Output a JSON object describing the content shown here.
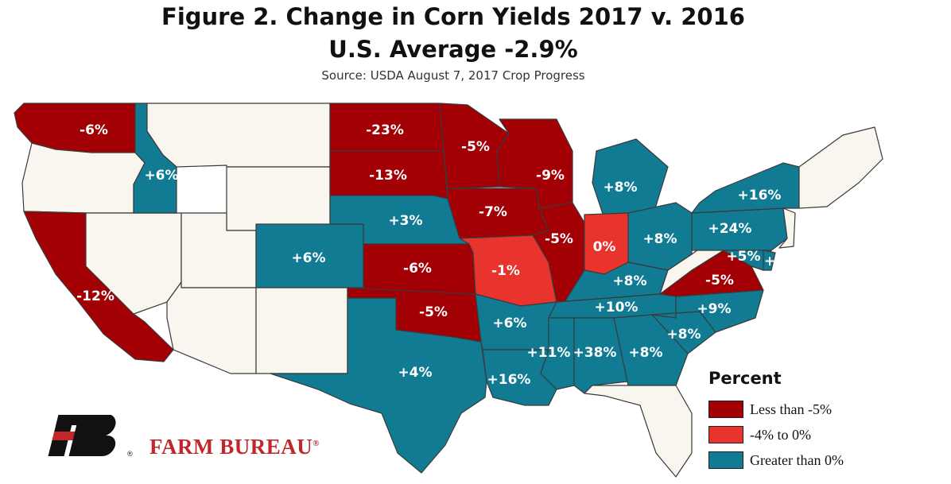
{
  "title": "Figure 2. Change in Corn Yields 2017 v. 2016",
  "subtitle": "U.S. Average -2.9%",
  "source": "Source: USDA August 7, 2017 Crop Progress",
  "colors": {
    "low": "#a30006",
    "mid": "#e8342c",
    "high": "#117b93",
    "none": "#f8f6ee",
    "border": "#3a3a3a"
  },
  "legend": {
    "title": "Percent",
    "items": [
      {
        "label": "Less than -5%",
        "color": "#a30006"
      },
      {
        "label": "-4% to 0%",
        "color": "#e8342c"
      },
      {
        "label": "Greater than 0%",
        "color": "#117b93"
      }
    ]
  },
  "states": [
    {
      "id": "WA",
      "value": "-6%",
      "cat": "low"
    },
    {
      "id": "OR",
      "value": "",
      "cat": "none"
    },
    {
      "id": "CA",
      "value": "-12%",
      "cat": "low"
    },
    {
      "id": "NV",
      "value": "",
      "cat": "none"
    },
    {
      "id": "ID",
      "value": "+6%",
      "cat": "high"
    },
    {
      "id": "MT",
      "value": "",
      "cat": "none"
    },
    {
      "id": "WY",
      "value": "",
      "cat": "none"
    },
    {
      "id": "UT",
      "value": "",
      "cat": "none"
    },
    {
      "id": "AZ",
      "value": "",
      "cat": "none"
    },
    {
      "id": "CO",
      "value": "+6%",
      "cat": "high"
    },
    {
      "id": "NM",
      "value": "",
      "cat": "none"
    },
    {
      "id": "ND",
      "value": "-23%",
      "cat": "low"
    },
    {
      "id": "SD",
      "value": "-13%",
      "cat": "low"
    },
    {
      "id": "NE",
      "value": "+3%",
      "cat": "high"
    },
    {
      "id": "KS",
      "value": "-6%",
      "cat": "low"
    },
    {
      "id": "OK",
      "value": "-5%",
      "cat": "low"
    },
    {
      "id": "TX",
      "value": "+4%",
      "cat": "high"
    },
    {
      "id": "MN",
      "value": "-5%",
      "cat": "low"
    },
    {
      "id": "IA",
      "value": "-7%",
      "cat": "low"
    },
    {
      "id": "MO",
      "value": "-1%",
      "cat": "mid"
    },
    {
      "id": "AR",
      "value": "+6%",
      "cat": "high"
    },
    {
      "id": "LA",
      "value": "+16%",
      "cat": "high"
    },
    {
      "id": "WI",
      "value": "-9%",
      "cat": "low"
    },
    {
      "id": "IL",
      "value": "-5%",
      "cat": "low"
    },
    {
      "id": "MI",
      "value": "+8%",
      "cat": "high"
    },
    {
      "id": "IN",
      "value": "0%",
      "cat": "mid"
    },
    {
      "id": "OH",
      "value": "+8%",
      "cat": "high"
    },
    {
      "id": "KY",
      "value": "+8%",
      "cat": "high"
    },
    {
      "id": "TN",
      "value": "+10%",
      "cat": "high"
    },
    {
      "id": "MS",
      "value": "+11%",
      "cat": "high"
    },
    {
      "id": "AL",
      "value": "+38%",
      "cat": "high"
    },
    {
      "id": "GA",
      "value": "+8%",
      "cat": "high"
    },
    {
      "id": "FL",
      "value": "",
      "cat": "none"
    },
    {
      "id": "SC",
      "value": "+8%",
      "cat": "high"
    },
    {
      "id": "NC",
      "value": "+9%",
      "cat": "high"
    },
    {
      "id": "VA",
      "value": "-5%",
      "cat": "low"
    },
    {
      "id": "WV",
      "value": "",
      "cat": "none"
    },
    {
      "id": "PA",
      "value": "+24%",
      "cat": "high"
    },
    {
      "id": "NY",
      "value": "+16%",
      "cat": "high"
    },
    {
      "id": "MD",
      "value": "+5%",
      "cat": "high"
    },
    {
      "id": "DE",
      "value": "+",
      "cat": "high"
    },
    {
      "id": "NJ",
      "value": "",
      "cat": "none"
    },
    {
      "id": "NE_REGION",
      "value": "",
      "cat": "none"
    }
  ],
  "brand": {
    "name": "FARM BUREAU",
    "mark": "®"
  }
}
